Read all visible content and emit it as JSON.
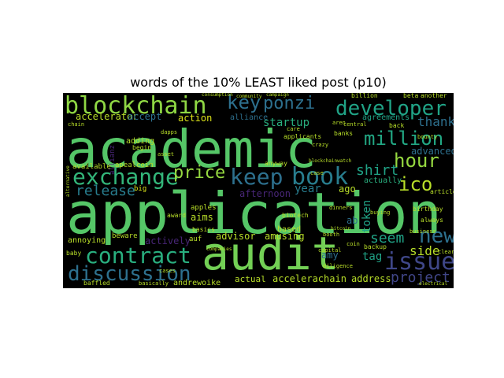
{
  "chart_data": {
    "type": "wordcloud",
    "title": "words of the 10% LEAST liked post (p10)",
    "background": "#000000",
    "palette": "viridis",
    "words": [
      {
        "text": "application",
        "weight": 1.0,
        "color": "#55c667"
      },
      {
        "text": "academic",
        "weight": 0.92,
        "color": "#55c667"
      },
      {
        "text": "audit",
        "weight": 0.88,
        "color": "#73d055"
      },
      {
        "text": "blockchain",
        "weight": 0.46,
        "color": "#8fd744"
      },
      {
        "text": "keep",
        "weight": 0.45,
        "color": "#2d708e"
      },
      {
        "text": "book",
        "weight": 0.44,
        "color": "#287d8e"
      },
      {
        "text": "exchange",
        "weight": 0.42,
        "color": "#33b67a"
      },
      {
        "text": "contract",
        "weight": 0.42,
        "color": "#29af7f"
      },
      {
        "text": "developer",
        "weight": 0.38,
        "color": "#20a386"
      },
      {
        "text": "issue",
        "weight": 0.37,
        "color": "#3f4788"
      },
      {
        "text": "discussion",
        "weight": 0.36,
        "color": "#2d708e"
      },
      {
        "text": "million",
        "weight": 0.34,
        "color": "#22a884"
      },
      {
        "text": "hour",
        "weight": 0.33,
        "color": "#95d840"
      },
      {
        "text": "ponzi",
        "weight": 0.32,
        "color": "#2d708e"
      },
      {
        "text": "key",
        "weight": 0.32,
        "color": "#2d708e"
      },
      {
        "text": "new",
        "weight": 0.3,
        "color": "#2d708e"
      },
      {
        "text": "ico",
        "weight": 0.3,
        "color": "#b8de29"
      },
      {
        "text": "price",
        "weight": 0.26,
        "color": "#95d840"
      },
      {
        "text": "shirt",
        "weight": 0.22,
        "color": "#20a386"
      },
      {
        "text": "seem",
        "weight": 0.22,
        "color": "#20a386"
      },
      {
        "text": "release",
        "weight": 0.2,
        "color": "#287d8e"
      },
      {
        "text": "project",
        "weight": 0.2,
        "color": "#404688"
      },
      {
        "text": "side",
        "weight": 0.18,
        "color": "#b8de29"
      },
      {
        "text": "token",
        "weight": 0.16,
        "color": "#20a386"
      },
      {
        "text": "thank",
        "weight": 0.15,
        "color": "#2d708e"
      },
      {
        "text": "year",
        "weight": 0.15,
        "color": "#287d8e"
      },
      {
        "text": "tag",
        "weight": 0.14,
        "color": "#20a386"
      },
      {
        "text": "startup",
        "weight": 0.14,
        "color": "#29af7f"
      },
      {
        "text": "actively",
        "weight": 0.13,
        "color": "#482677"
      },
      {
        "text": "advisor",
        "weight": 0.13,
        "color": "#b8de29"
      },
      {
        "text": "accelerator",
        "weight": 0.12,
        "color": "#b8de29"
      },
      {
        "text": "accept",
        "weight": 0.12,
        "color": "#2d708e"
      },
      {
        "text": "action",
        "weight": 0.12,
        "color": "#dce319"
      },
      {
        "text": "address",
        "weight": 0.12,
        "color": "#b8de29"
      },
      {
        "text": "accelerachain",
        "weight": 0.12,
        "color": "#b8de29"
      },
      {
        "text": "advanced",
        "weight": 0.12,
        "color": "#2d708e"
      },
      {
        "text": "afternoon",
        "weight": 0.12,
        "color": "#482677"
      },
      {
        "text": "ago",
        "weight": 0.12,
        "color": "#b8de29"
      },
      {
        "text": "actually",
        "weight": 0.12,
        "color": "#29af7f"
      },
      {
        "text": "alliance",
        "weight": 0.11,
        "color": "#2d708e"
      },
      {
        "text": "agreements",
        "weight": 0.11,
        "color": "#20a386"
      },
      {
        "text": "adding",
        "weight": 0.11,
        "color": "#b8de29"
      },
      {
        "text": "aims",
        "weight": 0.11,
        "color": "#b8de29"
      },
      {
        "text": "amusing",
        "weight": 0.11,
        "color": "#b8de29"
      },
      {
        "text": "amy",
        "weight": 0.1,
        "color": "#2d708e"
      },
      {
        "text": "ab",
        "weight": 0.1,
        "color": "#2d708e"
      },
      {
        "text": "based",
        "weight": 0.1,
        "color": "#b8de29"
      },
      {
        "text": "actual",
        "weight": 0.1,
        "color": "#b8de29"
      },
      {
        "text": "andrewoike",
        "weight": 0.1,
        "color": "#b8de29"
      },
      {
        "text": "annoying",
        "weight": 0.1,
        "color": "#b8de29"
      },
      {
        "text": "allianz",
        "weight": 0.09,
        "color": "#482677"
      },
      {
        "text": "apealcoin",
        "weight": 0.09,
        "color": "#b8de29"
      },
      {
        "text": "available",
        "weight": 0.09,
        "color": "#b8de29"
      },
      {
        "text": "beware",
        "weight": 0.09,
        "color": "#b8de29"
      },
      {
        "text": "big",
        "weight": 0.09,
        "color": "#dce319"
      },
      {
        "text": "auf",
        "weight": 0.09,
        "color": "#b8de29"
      },
      {
        "text": "apples",
        "weight": 0.09,
        "color": "#b8de29"
      },
      {
        "text": "basics",
        "weight": 0.08,
        "color": "#b8de29"
      },
      {
        "text": "award",
        "weight": 0.08,
        "color": "#b8de29"
      },
      {
        "text": "begin",
        "weight": 0.08,
        "color": "#b8de29"
      },
      {
        "text": "baby",
        "weight": 0.08,
        "color": "#b8de29"
      },
      {
        "text": "baffled",
        "weight": 0.08,
        "color": "#b8de29"
      },
      {
        "text": "backup",
        "weight": 0.08,
        "color": "#b8de29"
      },
      {
        "text": "biotech",
        "weight": 0.08,
        "color": "#b8de29"
      },
      {
        "text": "anyway",
        "weight": 0.08,
        "color": "#b8de29"
      },
      {
        "text": "always",
        "weight": 0.08,
        "color": "#b8de29"
      },
      {
        "text": "beta",
        "weight": 0.08,
        "color": "#b8de29"
      },
      {
        "text": "another",
        "weight": 0.08,
        "color": "#b8de29"
      },
      {
        "text": "back",
        "weight": 0.08,
        "color": "#b8de29"
      },
      {
        "text": "billion",
        "weight": 0.08,
        "color": "#b8de29"
      },
      {
        "text": "banks",
        "weight": 0.08,
        "color": "#b8de29"
      },
      {
        "text": "applicants",
        "weight": 0.08,
        "color": "#b8de29"
      },
      {
        "text": "birthday",
        "weight": 0.08,
        "color": "#b8de29"
      },
      {
        "text": "article",
        "weight": 0.08,
        "color": "#b8de29"
      },
      {
        "text": "central",
        "weight": 0.07,
        "color": "#b8de29"
      },
      {
        "text": "aren",
        "weight": 0.07,
        "color": "#b8de29"
      },
      {
        "text": "crazy",
        "weight": 0.07,
        "color": "#b8de29"
      },
      {
        "text": "blockchainwatch",
        "weight": 0.07,
        "color": "#b8de29"
      },
      {
        "text": "clear",
        "weight": 0.07,
        "color": "#b8de29"
      },
      {
        "text": "dinners",
        "weight": 0.07,
        "color": "#b8de29"
      },
      {
        "text": "diligence",
        "weight": 0.07,
        "color": "#b8de29"
      },
      {
        "text": "business",
        "weight": 0.07,
        "color": "#b8de29"
      },
      {
        "text": "buying",
        "weight": 0.07,
        "color": "#b8de29"
      },
      {
        "text": "companies",
        "weight": 0.07,
        "color": "#b8de29"
      },
      {
        "text": "capital",
        "weight": 0.07,
        "color": "#b8de29"
      },
      {
        "text": "bitcoin",
        "weight": 0.07,
        "color": "#b8de29"
      },
      {
        "text": "care",
        "weight": 0.07,
        "color": "#b8de29"
      },
      {
        "text": "asset",
        "weight": 0.07,
        "color": "#b8de29"
      },
      {
        "text": "chain",
        "weight": 0.07,
        "color": "#b8de29"
      },
      {
        "text": "dapps",
        "weight": 0.07,
        "color": "#b8de29"
      },
      {
        "text": "bounty",
        "weight": 0.07,
        "color": "#b8de29"
      },
      {
        "text": "cases",
        "weight": 0.07,
        "color": "#b8de29"
      },
      {
        "text": "booth",
        "weight": 0.07,
        "color": "#b8de29"
      },
      {
        "text": "electrical",
        "weight": 0.07,
        "color": "#b8de29"
      },
      {
        "text": "coin",
        "weight": 0.07,
        "color": "#b8de29"
      },
      {
        "text": "basically",
        "weight": 0.07,
        "color": "#b8de29"
      },
      {
        "text": "consumption",
        "weight": 0.07,
        "color": "#b8de29"
      },
      {
        "text": "campaign",
        "weight": 0.07,
        "color": "#b8de29"
      },
      {
        "text": "community",
        "weight": 0.07,
        "color": "#b8de29"
      },
      {
        "text": "alternative",
        "weight": 0.07,
        "color": "#b8de29"
      },
      {
        "text": "case",
        "weight": 0.07,
        "color": "#b8de29"
      }
    ]
  }
}
